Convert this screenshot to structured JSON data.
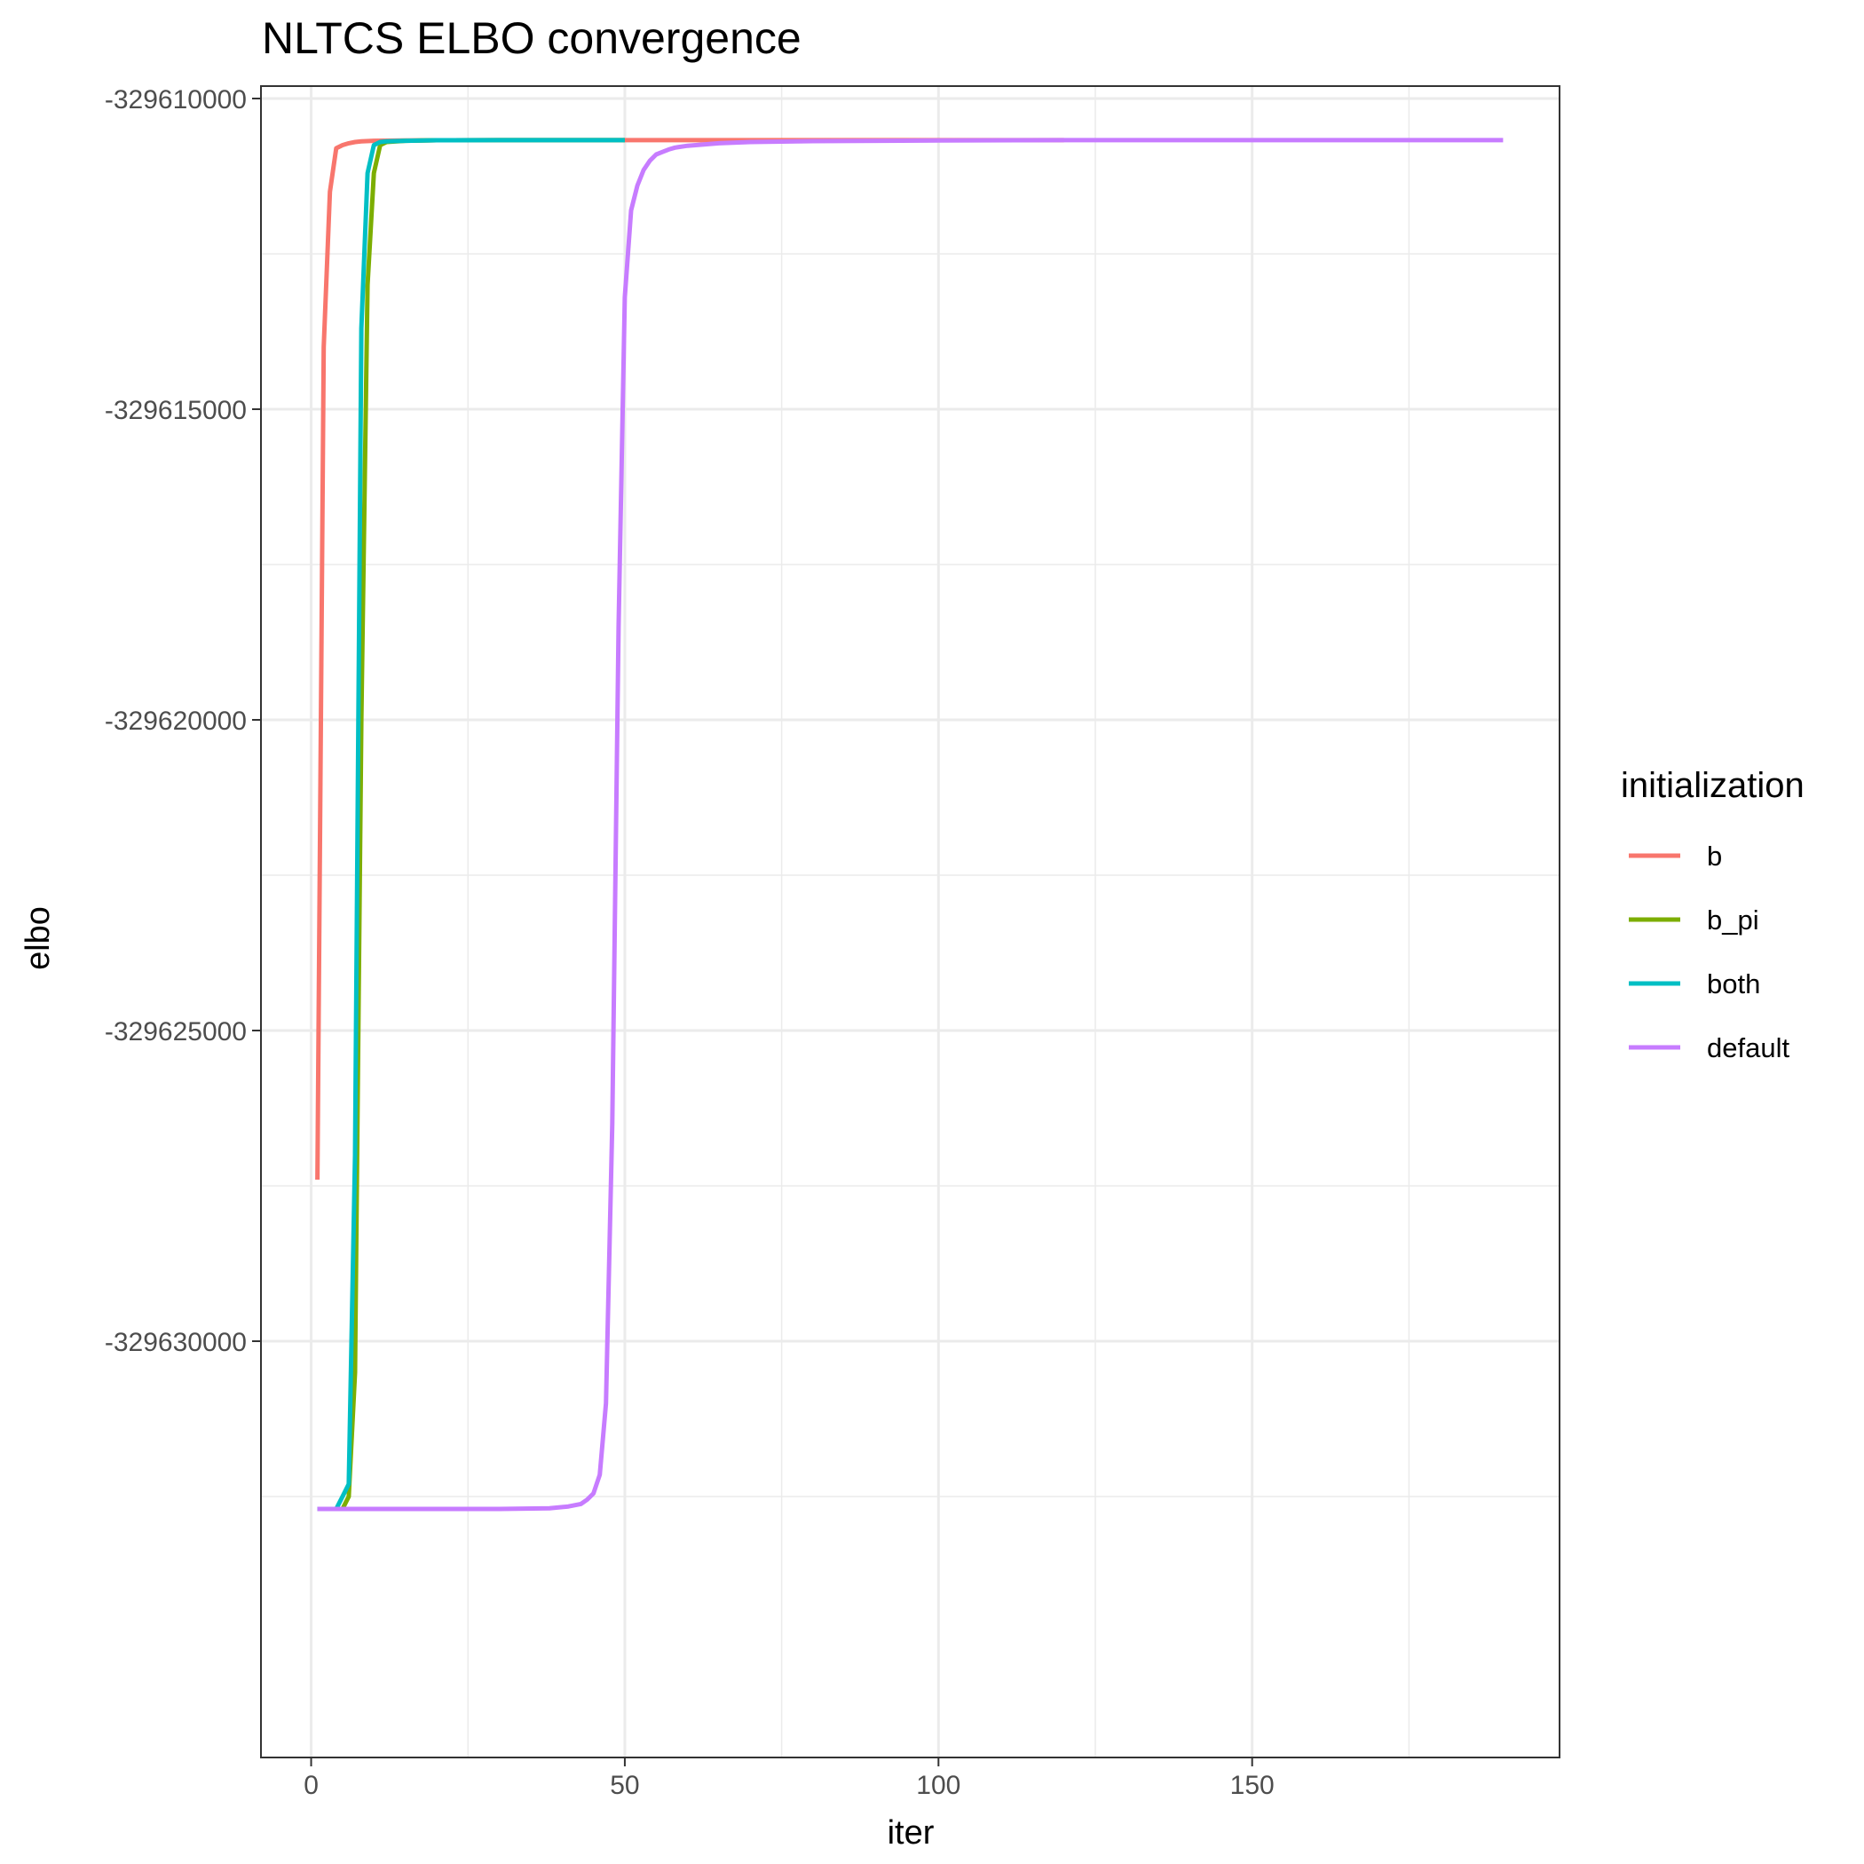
{
  "chart_data": {
    "type": "line",
    "title": "NLTCS ELBO convergence",
    "xlabel": "iter",
    "ylabel": "elbo",
    "xlim": [
      -8,
      199
    ],
    "ylim": [
      -329636700,
      -329609800
    ],
    "x_ticks": [
      0,
      50,
      100,
      150
    ],
    "x_minor_ticks": [
      25,
      75,
      125,
      175
    ],
    "y_ticks": [
      -329610000,
      -329615000,
      -329620000,
      -329625000,
      -329630000
    ],
    "y_minor_ticks": [
      -329612500,
      -329617500,
      -329622500,
      -329627500,
      -329632500
    ],
    "y_tick_labels": [
      "-329610000",
      "-329615000",
      "-329620000",
      "-329625000",
      "-329630000"
    ],
    "x_tick_labels": [
      "0",
      "50",
      "100",
      "150"
    ],
    "grid": true,
    "legend": {
      "title": "initialization",
      "position": "right"
    },
    "series": [
      {
        "name": "b",
        "color": "#F8766D",
        "x": [
          1,
          2,
          3,
          4,
          5,
          6,
          7,
          8,
          10,
          15,
          20,
          30,
          50,
          80,
          120
        ],
        "y": [
          -329627400,
          -329614000,
          -329611500,
          -329610800,
          -329610750,
          -329610720,
          -329610700,
          -329610690,
          -329610680,
          -329610675,
          -329610672,
          -329610670,
          -329610670,
          -329610670,
          -329610670
        ]
      },
      {
        "name": "b_pi",
        "color": "#7CAE00",
        "x": [
          1,
          2,
          3,
          4,
          5,
          6,
          7,
          8,
          9,
          10,
          11,
          12,
          15,
          20,
          30,
          40,
          50
        ],
        "y": [
          -329632700,
          -329632700,
          -329632700,
          -329632700,
          -329632700,
          -329632500,
          -329630500,
          -329620000,
          -329613000,
          -329611200,
          -329610750,
          -329610700,
          -329610680,
          -329610672,
          -329610670,
          -329610670,
          -329610670
        ]
      },
      {
        "name": "both",
        "color": "#00BFC4",
        "x": [
          1,
          2,
          3,
          4,
          5,
          6,
          7,
          8,
          9,
          10,
          11,
          12,
          15,
          20,
          30,
          40,
          50
        ],
        "y": [
          -329632700,
          -329632700,
          -329632700,
          -329632700,
          -329632500,
          -329632300,
          -329627000,
          -329613700,
          -329611200,
          -329610750,
          -329610700,
          -329610690,
          -329610680,
          -329610672,
          -329610670,
          -329610670,
          -329610670
        ]
      },
      {
        "name": "default",
        "color": "#C77CFF",
        "x": [
          1,
          10,
          20,
          30,
          38,
          41,
          43,
          44,
          45,
          46,
          47,
          48,
          49,
          50,
          51,
          52,
          53,
          54,
          55,
          56,
          57,
          58,
          60,
          65,
          70,
          80,
          100,
          120,
          150,
          190
        ],
        "y": [
          -329632700,
          -329632700,
          -329632700,
          -329632700,
          -329632690,
          -329632660,
          -329632620,
          -329632550,
          -329632450,
          -329632150,
          -329631000,
          -329626500,
          -329618500,
          -329613200,
          -329611800,
          -329611400,
          -329611150,
          -329611000,
          -329610900,
          -329610860,
          -329610820,
          -329610790,
          -329610760,
          -329610720,
          -329610700,
          -329610685,
          -329610675,
          -329610670,
          -329610670,
          -329610670
        ]
      }
    ]
  }
}
